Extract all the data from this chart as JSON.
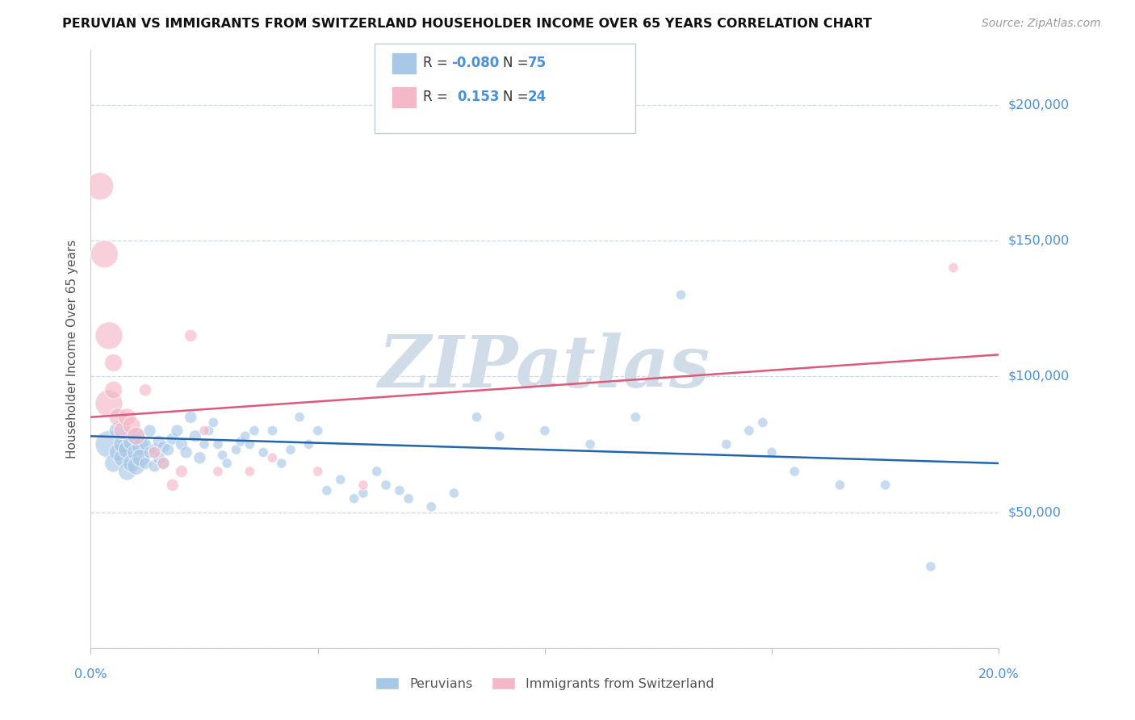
{
  "title": "PERUVIAN VS IMMIGRANTS FROM SWITZERLAND HOUSEHOLDER INCOME OVER 65 YEARS CORRELATION CHART",
  "source": "Source: ZipAtlas.com",
  "ylabel": "Householder Income Over 65 years",
  "watermark": "ZIPatlas",
  "xlim": [
    0.0,
    0.2
  ],
  "ylim": [
    0,
    220000
  ],
  "yticks": [
    0,
    50000,
    100000,
    150000,
    200000
  ],
  "ytick_labels": [
    "",
    "$50,000",
    "$100,000",
    "$150,000",
    "$200,000"
  ],
  "xticks": [
    0.0,
    0.05,
    0.1,
    0.15,
    0.2
  ],
  "blue_R": -0.08,
  "blue_N": 75,
  "pink_R": 0.153,
  "pink_N": 24,
  "blue_color": "#a8c8e8",
  "pink_color": "#f4b8c8",
  "blue_line_color": "#2166ac",
  "pink_line_color": "#e05878",
  "title_color": "#111111",
  "axis_label_color": "#555555",
  "tick_color": "#4a90d9",
  "grid_color": "#c8d8e8",
  "watermark_color": "#d0dde8",
  "blue_scatter_x": [
    0.004,
    0.005,
    0.006,
    0.006,
    0.007,
    0.007,
    0.008,
    0.008,
    0.009,
    0.009,
    0.01,
    0.01,
    0.01,
    0.011,
    0.011,
    0.012,
    0.012,
    0.013,
    0.013,
    0.014,
    0.014,
    0.015,
    0.015,
    0.016,
    0.016,
    0.017,
    0.018,
    0.019,
    0.02,
    0.021,
    0.022,
    0.023,
    0.024,
    0.025,
    0.026,
    0.027,
    0.028,
    0.029,
    0.03,
    0.032,
    0.033,
    0.034,
    0.035,
    0.036,
    0.038,
    0.04,
    0.042,
    0.044,
    0.046,
    0.048,
    0.05,
    0.052,
    0.055,
    0.058,
    0.06,
    0.063,
    0.065,
    0.068,
    0.07,
    0.075,
    0.08,
    0.085,
    0.09,
    0.1,
    0.11,
    0.12,
    0.13,
    0.14,
    0.145,
    0.148,
    0.15,
    0.155,
    0.165,
    0.175,
    0.185
  ],
  "blue_scatter_y": [
    75000,
    68000,
    72000,
    80000,
    70000,
    75000,
    65000,
    73000,
    68000,
    76000,
    72000,
    78000,
    67000,
    74000,
    70000,
    75000,
    68000,
    72000,
    80000,
    73000,
    67000,
    76000,
    70000,
    74000,
    68000,
    73000,
    77000,
    80000,
    75000,
    72000,
    85000,
    78000,
    70000,
    75000,
    80000,
    83000,
    75000,
    71000,
    68000,
    73000,
    76000,
    78000,
    75000,
    80000,
    72000,
    80000,
    68000,
    73000,
    85000,
    75000,
    80000,
    58000,
    62000,
    55000,
    57000,
    65000,
    60000,
    58000,
    55000,
    52000,
    57000,
    85000,
    78000,
    80000,
    75000,
    85000,
    130000,
    75000,
    80000,
    83000,
    72000,
    65000,
    60000,
    60000,
    30000
  ],
  "pink_scatter_x": [
    0.002,
    0.003,
    0.004,
    0.004,
    0.005,
    0.005,
    0.006,
    0.007,
    0.008,
    0.009,
    0.01,
    0.012,
    0.014,
    0.016,
    0.018,
    0.02,
    0.022,
    0.025,
    0.028,
    0.035,
    0.04,
    0.05,
    0.06,
    0.19
  ],
  "pink_scatter_y": [
    170000,
    145000,
    115000,
    90000,
    95000,
    105000,
    85000,
    80000,
    85000,
    82000,
    78000,
    95000,
    72000,
    68000,
    60000,
    65000,
    115000,
    80000,
    65000,
    65000,
    70000,
    65000,
    60000,
    140000
  ],
  "blue_trend_x": [
    0.0,
    0.2
  ],
  "blue_trend_y": [
    78000,
    68000
  ],
  "pink_trend_x": [
    0.0,
    0.2
  ],
  "pink_trend_y": [
    85000,
    108000
  ]
}
